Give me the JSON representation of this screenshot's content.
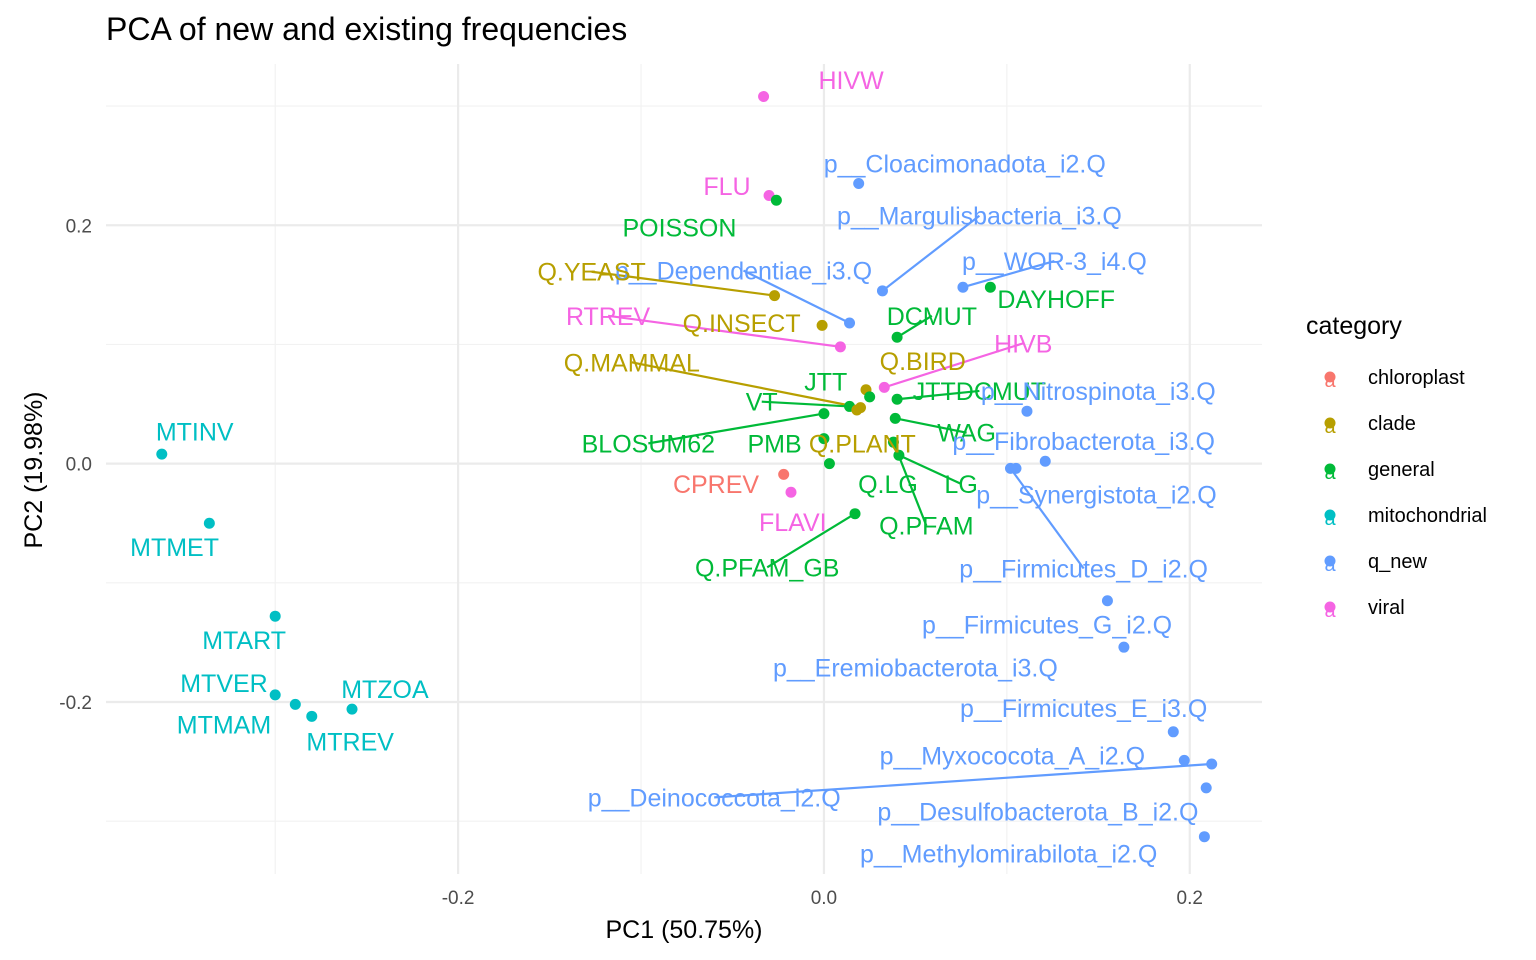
{
  "chart_data": {
    "type": "scatter",
    "title": "PCA of new and existing frequencies",
    "xlabel": "PC1 (50.75%)",
    "ylabel": "PC2 (19.98%)",
    "xlim": [
      -0.3925,
      0.2395
    ],
    "ylim": [
      -0.3443,
      0.3353
    ],
    "x_ticks": [
      -0.2,
      0.0,
      0.2
    ],
    "x_tick_labels": [
      "-0.2",
      "0.0",
      "0.2"
    ],
    "y_ticks": [
      -0.2,
      0.0,
      0.2
    ],
    "y_tick_labels": [
      "-0.2",
      "0.0",
      "0.2"
    ],
    "grid": true,
    "legend": {
      "title": "category",
      "position": "right",
      "entries": [
        {
          "name": "chloroplast",
          "color": "#F8766D"
        },
        {
          "name": "clade",
          "color": "#B79F00"
        },
        {
          "name": "general",
          "color": "#00BA38"
        },
        {
          "name": "mitochondrial",
          "color": "#00BFC4"
        },
        {
          "name": "q_new",
          "color": "#619CFF"
        },
        {
          "name": "viral",
          "color": "#F564E3"
        }
      ]
    },
    "points": [
      {
        "label": "HIVW",
        "category": "viral",
        "x": -0.033,
        "y": 0.308,
        "lx": -0.003,
        "ly": 0.322,
        "anchor": "start"
      },
      {
        "label": "FLU",
        "category": "viral",
        "x": -0.03,
        "y": 0.225,
        "lx": -0.053,
        "ly": 0.233,
        "anchor": "middle"
      },
      {
        "label": "POISSON",
        "category": "general",
        "x": -0.026,
        "y": 0.221,
        "lx": -0.079,
        "ly": 0.198,
        "anchor": "middle"
      },
      {
        "label": "p__Cloacimonadota_i2.Q",
        "category": "q_new",
        "x": 0.019,
        "y": 0.235,
        "lx": 0.077,
        "ly": 0.252,
        "anchor": "middle"
      },
      {
        "label": "p__Margulisbacteria_i3.Q",
        "category": "q_new",
        "x": 0.032,
        "y": 0.145,
        "lx": 0.085,
        "ly": 0.208,
        "anchor": "middle",
        "line": true
      },
      {
        "label": "p__WOR-3_i4.Q",
        "category": "q_new",
        "x": 0.076,
        "y": 0.148,
        "lx": 0.126,
        "ly": 0.17,
        "anchor": "middle",
        "line": true
      },
      {
        "label": "p__Dependentiae_i3.Q",
        "category": "q_new",
        "x": 0.014,
        "y": 0.118,
        "lx": -0.044,
        "ly": 0.162,
        "anchor": "middle",
        "line": true
      },
      {
        "label": "Q.YEAST",
        "category": "clade",
        "x": -0.027,
        "y": 0.141,
        "lx": -0.127,
        "ly": 0.161,
        "anchor": "middle",
        "line": true
      },
      {
        "label": "DAYHOFF",
        "category": "general",
        "x": 0.091,
        "y": 0.148,
        "lx": 0.127,
        "ly": 0.138,
        "anchor": "middle"
      },
      {
        "label": "DCMUT",
        "category": "general",
        "x": 0.04,
        "y": 0.106,
        "lx": 0.059,
        "ly": 0.124,
        "anchor": "middle",
        "line": true
      },
      {
        "label": "RTREV",
        "category": "viral",
        "x": 0.009,
        "y": 0.098,
        "lx": -0.118,
        "ly": 0.124,
        "anchor": "middle",
        "line": true
      },
      {
        "label": "Q.INSECT",
        "category": "clade",
        "x": -0.001,
        "y": 0.116,
        "lx": -0.045,
        "ly": 0.118,
        "anchor": "middle"
      },
      {
        "label": "HIVB",
        "category": "viral",
        "x": 0.033,
        "y": 0.064,
        "lx": 0.109,
        "ly": 0.101,
        "anchor": "middle",
        "line": true
      },
      {
        "label": "Q.BIRD",
        "category": "clade",
        "x": 0.023,
        "y": 0.062,
        "lx": 0.054,
        "ly": 0.086,
        "anchor": "middle"
      },
      {
        "label": "Q.MAMMAL",
        "category": "clade",
        "x": 0.02,
        "y": 0.047,
        "lx": -0.105,
        "ly": 0.085,
        "anchor": "middle",
        "line": true
      },
      {
        "label": "JTT",
        "category": "general",
        "x": 0.025,
        "y": 0.056,
        "lx": 0.001,
        "ly": 0.069,
        "anchor": "middle"
      },
      {
        "label": "JTTDCMUT",
        "category": "general",
        "x": 0.04,
        "y": 0.054,
        "lx": 0.085,
        "ly": 0.061,
        "anchor": "middle",
        "line": true
      },
      {
        "label": "p__Nitrospinota_i3.Q",
        "category": "q_new",
        "x": 0.111,
        "y": 0.044,
        "lx": 0.15,
        "ly": 0.061,
        "anchor": "middle"
      },
      {
        "label": "VT",
        "category": "general",
        "x": 0.014,
        "y": 0.048,
        "lx": -0.034,
        "ly": 0.052,
        "anchor": "middle",
        "line": true
      },
      {
        "label": "WAG",
        "category": "general",
        "x": 0.039,
        "y": 0.038,
        "lx": 0.078,
        "ly": 0.026,
        "anchor": "middle",
        "line": true
      },
      {
        "label": "BLOSUM62",
        "category": "general",
        "x": 0.0,
        "y": 0.042,
        "lx": -0.096,
        "ly": 0.017,
        "anchor": "middle",
        "line": true
      },
      {
        "label": "PMB",
        "category": "general",
        "x": 0.0,
        "y": 0.021,
        "lx": -0.027,
        "ly": 0.017,
        "anchor": "middle"
      },
      {
        "label": "Q.PLANT",
        "category": "clade",
        "x": 0.018,
        "y": 0.045,
        "lx": 0.021,
        "ly": 0.017,
        "anchor": "middle"
      },
      {
        "label": "p__Fibrobacterota_i3.Q",
        "category": "q_new",
        "x": 0.121,
        "y": 0.002,
        "lx": 0.142,
        "ly": 0.019,
        "anchor": "middle"
      },
      {
        "label": "p__Synergistota_i2.Q",
        "category": "q_new",
        "x": 0.105,
        "y": -0.004,
        "lx": 0.149,
        "ly": -0.026,
        "anchor": "middle"
      },
      {
        "label": "CPREV",
        "category": "chloroplast",
        "x": -0.022,
        "y": -0.009,
        "lx": -0.059,
        "ly": -0.017,
        "anchor": "middle"
      },
      {
        "label": "Q.LG",
        "category": "general",
        "x": 0.003,
        "y": 0.0,
        "lx": 0.035,
        "ly": -0.017,
        "anchor": "middle"
      },
      {
        "label": "LG",
        "category": "general",
        "x": 0.041,
        "y": 0.007,
        "lx": 0.075,
        "ly": -0.017,
        "anchor": "middle",
        "line": true
      },
      {
        "label": "FLAVI",
        "category": "viral",
        "x": -0.018,
        "y": -0.024,
        "lx": -0.017,
        "ly": -0.049,
        "anchor": "middle"
      },
      {
        "label": "Q.PFAM",
        "category": "general",
        "x": 0.038,
        "y": 0.018,
        "lx": 0.056,
        "ly": -0.052,
        "anchor": "middle",
        "line": true
      },
      {
        "label": "Q.PFAM_GB",
        "category": "general",
        "x": 0.017,
        "y": -0.042,
        "lx": -0.031,
        "ly": -0.087,
        "anchor": "middle",
        "line": true
      },
      {
        "label": "p__Firmicutes_D_i2.Q",
        "category": "q_new",
        "x": 0.102,
        "y": -0.004,
        "lx": 0.142,
        "ly": -0.088,
        "anchor": "middle",
        "line": true
      },
      {
        "label": "p__Firmicutes_G_i2.Q",
        "category": "q_new",
        "x": 0.155,
        "y": -0.115,
        "lx": 0.122,
        "ly": -0.135,
        "anchor": "middle"
      },
      {
        "label": "p__Eremiobacterota_i3.Q",
        "category": "q_new",
        "x": 0.164,
        "y": -0.154,
        "lx": 0.05,
        "ly": -0.171,
        "anchor": "middle"
      },
      {
        "label": "p__Firmicutes_E_i3.Q",
        "category": "q_new",
        "x": 0.191,
        "y": -0.225,
        "lx": 0.142,
        "ly": -0.205,
        "anchor": "middle"
      },
      {
        "label": "p__Myxococota_A_i2.Q",
        "category": "q_new",
        "x": 0.197,
        "y": -0.249,
        "lx": 0.103,
        "ly": -0.245,
        "anchor": "middle"
      },
      {
        "label": "p__Deinococcota_i2.Q",
        "category": "q_new",
        "x": 0.212,
        "y": -0.252,
        "lx": -0.06,
        "ly": -0.28,
        "anchor": "middle",
        "line": true
      },
      {
        "label": "p__Desulfobacterota_B_i2.Q",
        "category": "q_new",
        "x": 0.209,
        "y": -0.272,
        "lx": 0.117,
        "ly": -0.292,
        "anchor": "middle"
      },
      {
        "label": "p__Methylomirabilota_i2.Q",
        "category": "q_new",
        "x": 0.208,
        "y": -0.313,
        "lx": 0.101,
        "ly": -0.327,
        "anchor": "middle"
      },
      {
        "label": "MTINV",
        "category": "mitochondrial",
        "x": -0.362,
        "y": 0.008,
        "lx": -0.344,
        "ly": 0.027,
        "anchor": "middle"
      },
      {
        "label": "MTMET",
        "category": "mitochondrial",
        "x": -0.336,
        "y": -0.05,
        "lx": -0.355,
        "ly": -0.07,
        "anchor": "middle"
      },
      {
        "label": "MTART",
        "category": "mitochondrial",
        "x": -0.3,
        "y": -0.128,
        "lx": -0.317,
        "ly": -0.148,
        "anchor": "middle"
      },
      {
        "label": "MTVER",
        "category": "mitochondrial",
        "x": -0.3,
        "y": -0.194,
        "lx": -0.328,
        "ly": -0.184,
        "anchor": "middle"
      },
      {
        "label": "MTZOA",
        "category": "mitochondrial",
        "x": -0.258,
        "y": -0.206,
        "lx": -0.24,
        "ly": -0.189,
        "anchor": "middle"
      },
      {
        "label": "MTMAM",
        "category": "mitochondrial",
        "x": -0.289,
        "y": -0.202,
        "lx": -0.328,
        "ly": -0.219,
        "anchor": "middle"
      },
      {
        "label": "MTREV",
        "category": "mitochondrial",
        "x": -0.28,
        "y": -0.212,
        "lx": -0.259,
        "ly": -0.233,
        "anchor": "middle"
      }
    ]
  }
}
